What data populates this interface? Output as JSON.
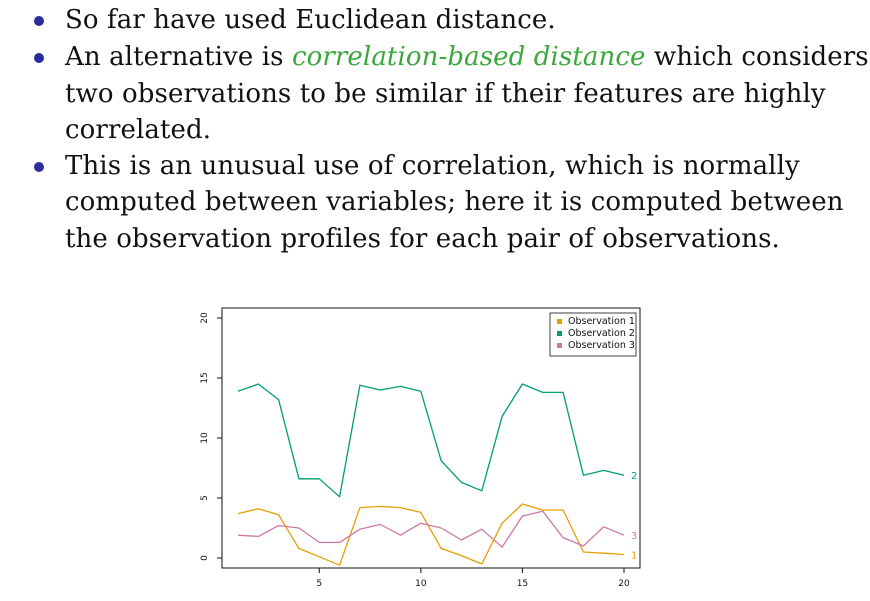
{
  "bullets": [
    {
      "lines": [
        {
          "parts": [
            {
              "text": "So far have used Euclidean distance.",
              "emphasis": false
            }
          ]
        }
      ]
    },
    {
      "lines": [
        {
          "parts": [
            {
              "text": "An alternative is ",
              "emphasis": false
            },
            {
              "text": "correlation-based distance",
              "emphasis": true
            },
            {
              "text": " which considers",
              "emphasis": false
            }
          ]
        },
        {
          "parts": [
            {
              "text": "two observations to be similar if their features are highly",
              "emphasis": false
            }
          ]
        },
        {
          "parts": [
            {
              "text": "correlated.",
              "emphasis": false
            }
          ]
        }
      ]
    },
    {
      "lines": [
        {
          "parts": [
            {
              "text": "This is an unusual use of correlation, which is normally",
              "emphasis": false
            }
          ]
        },
        {
          "parts": [
            {
              "text": "computed between variables; here it is computed between",
              "emphasis": false
            }
          ]
        },
        {
          "parts": [
            {
              "text": "the observation profiles for each pair of observations.",
              "emphasis": false
            }
          ]
        }
      ]
    }
  ],
  "colors": {
    "bullet": "#2b2b9c",
    "emphasis": "#3aa83a",
    "observation_1": "#e69f00",
    "observation_2": "#009e73",
    "observation_3": "#cc79a7"
  },
  "chart_data": {
    "type": "line",
    "title": "",
    "xlabel": "",
    "ylabel": "",
    "xlim": [
      1,
      20
    ],
    "ylim": [
      0,
      20
    ],
    "x_ticks": [
      5,
      10,
      15,
      20
    ],
    "y_ticks": [
      0,
      5,
      10,
      15,
      20
    ],
    "grid": false,
    "legend_position": "top-right",
    "x": [
      1,
      2,
      3,
      4,
      5,
      6,
      7,
      8,
      9,
      10,
      11,
      12,
      13,
      14,
      15,
      16,
      17,
      18,
      19,
      20
    ],
    "series": [
      {
        "name": "Observation 1",
        "end_label": "1",
        "color": "#e69f00",
        "values": [
          3.7,
          4.1,
          3.6,
          0.8,
          0.1,
          -0.6,
          4.2,
          4.3,
          4.2,
          3.8,
          0.8,
          0.2,
          -0.5,
          2.9,
          4.5,
          4.0,
          4.0,
          0.5,
          0.4,
          0.3
        ]
      },
      {
        "name": "Observation 2",
        "end_label": "2",
        "color": "#009e73",
        "values": [
          13.9,
          14.5,
          13.2,
          6.6,
          6.6,
          5.1,
          14.4,
          14.0,
          14.3,
          13.9,
          8.1,
          6.3,
          5.6,
          11.8,
          14.5,
          13.8,
          13.8,
          6.9,
          7.3,
          6.9
        ]
      },
      {
        "name": "Observation 3",
        "end_label": "3",
        "color": "#cc79a7",
        "values": [
          1.9,
          1.8,
          2.7,
          2.5,
          1.3,
          1.3,
          2.4,
          2.8,
          1.9,
          2.9,
          2.5,
          1.5,
          2.4,
          0.9,
          3.5,
          3.9,
          1.7,
          1.0,
          2.6,
          1.9
        ]
      }
    ]
  }
}
